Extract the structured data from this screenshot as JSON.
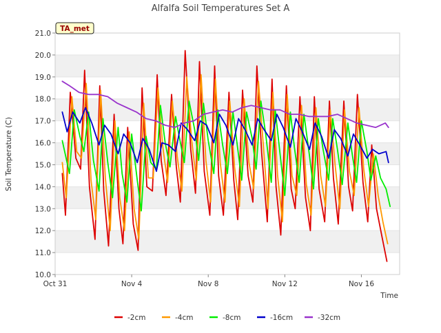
{
  "chart_data": {
    "type": "line",
    "title": "Alfalfa Soil Temperatures Set A",
    "xlabel": "Time",
    "ylabel": "Soil Temperature (C)",
    "station_label": "TA_met",
    "xlim": [
      "2023-10-31",
      "2023-11-18"
    ],
    "ylim": [
      10.0,
      21.0
    ],
    "y_ticks": [
      10.0,
      11.0,
      12.0,
      13.0,
      14.0,
      15.0,
      16.0,
      17.0,
      18.0,
      19.0,
      20.0,
      21.0
    ],
    "y_tick_labels": [
      "10.0",
      "11.0",
      "12.0",
      "13.0",
      "14.0",
      "15.0",
      "16.0",
      "17.0",
      "18.0",
      "19.0",
      "20.0",
      "21.0"
    ],
    "x_ticks": [
      "2023-10-31",
      "2023-11-04",
      "2023-11-08",
      "2023-11-12",
      "2023-11-16"
    ],
    "x_tick_labels": [
      "Oct 31",
      "Nov 4",
      "Nov 8",
      "Nov 12",
      "Nov 16"
    ],
    "grid": "horizontal bands",
    "legend_position": "bottom",
    "series": [
      {
        "name": "-2cm",
        "color": "#dd0000",
        "x": [
          "2023-10-31 09:00",
          "2023-10-31 13:00",
          "2023-10-31 19:00",
          "2023-11-01 02:00",
          "2023-11-01 08:00",
          "2023-11-01 13:00",
          "2023-11-01 19:00",
          "2023-11-02 02:00",
          "2023-11-02 08:00",
          "2023-11-02 13:00",
          "2023-11-02 19:00",
          "2023-11-03 02:00",
          "2023-11-03 08:00",
          "2023-11-03 13:00",
          "2023-11-03 19:00",
          "2023-11-04 02:00",
          "2023-11-04 08:00",
          "2023-11-04 13:00",
          "2023-11-04 19:00",
          "2023-11-05 02:00",
          "2023-11-05 08:00",
          "2023-11-05 13:00",
          "2023-11-05 19:00",
          "2023-11-06 02:00",
          "2023-11-06 08:00",
          "2023-11-06 13:00",
          "2023-11-06 19:00",
          "2023-11-07 02:00",
          "2023-11-07 08:00",
          "2023-11-07 13:00",
          "2023-11-07 19:00",
          "2023-11-08 02:00",
          "2023-11-08 08:00",
          "2023-11-08 13:00",
          "2023-11-08 19:00",
          "2023-11-09 02:00",
          "2023-11-09 08:00",
          "2023-11-09 13:00",
          "2023-11-09 19:00",
          "2023-11-10 02:00",
          "2023-11-10 08:00",
          "2023-11-10 13:00",
          "2023-11-10 19:00",
          "2023-11-11 02:00",
          "2023-11-11 08:00",
          "2023-11-11 13:00",
          "2023-11-11 19:00",
          "2023-11-12 02:00",
          "2023-11-12 08:00",
          "2023-11-12 13:00",
          "2023-11-12 19:00",
          "2023-11-13 02:00",
          "2023-11-13 08:00",
          "2023-11-13 13:00",
          "2023-11-13 19:00",
          "2023-11-14 02:00",
          "2023-11-14 08:00",
          "2023-11-14 13:00",
          "2023-11-14 19:00",
          "2023-11-15 02:00",
          "2023-11-15 08:00",
          "2023-11-15 13:00",
          "2023-11-15 19:00",
          "2023-11-16 02:00",
          "2023-11-16 08:00",
          "2023-11-16 13:00",
          "2023-11-16 19:00",
          "2023-11-17 02:00",
          "2023-11-17 08:00"
        ],
        "y": [
          14.6,
          12.7,
          18.3,
          15.3,
          14.8,
          19.3,
          14.0,
          11.6,
          18.6,
          13.8,
          11.3,
          17.3,
          13.0,
          11.4,
          16.7,
          12.3,
          11.1,
          18.5,
          14.0,
          13.8,
          19.1,
          15.2,
          13.6,
          18.2,
          14.9,
          13.3,
          20.2,
          15.7,
          13.7,
          19.7,
          14.7,
          12.7,
          19.5,
          14.5,
          12.7,
          18.3,
          14.3,
          12.5,
          18.4,
          14.5,
          13.3,
          19.5,
          15.5,
          12.4,
          18.9,
          14.0,
          11.8,
          18.6,
          13.9,
          13.0,
          18.1,
          13.5,
          12.0,
          18.1,
          13.9,
          12.4,
          17.9,
          14.4,
          12.3,
          17.9,
          14.0,
          12.9,
          18.2,
          14.2,
          12.4,
          15.9,
          13.0,
          11.7,
          10.6
        ]
      },
      {
        "name": "-4cm",
        "color": "#ff9900",
        "x": [
          "2023-10-31 09:00",
          "2023-10-31 14:00",
          "2023-10-31 21:00",
          "2023-11-01 03:00",
          "2023-11-01 09:00",
          "2023-11-01 15:00",
          "2023-11-01 21:00",
          "2023-11-02 03:00",
          "2023-11-02 09:00",
          "2023-11-02 15:00",
          "2023-11-02 21:00",
          "2023-11-03 03:00",
          "2023-11-03 09:00",
          "2023-11-03 15:00",
          "2023-11-03 21:00",
          "2023-11-04 03:00",
          "2023-11-04 09:00",
          "2023-11-04 15:00",
          "2023-11-04 21:00",
          "2023-11-05 03:00",
          "2023-11-05 09:00",
          "2023-11-05 15:00",
          "2023-11-05 21:00",
          "2023-11-06 03:00",
          "2023-11-06 09:00",
          "2023-11-06 15:00",
          "2023-11-06 21:00",
          "2023-11-07 03:00",
          "2023-11-07 09:00",
          "2023-11-07 15:00",
          "2023-11-07 21:00",
          "2023-11-08 03:00",
          "2023-11-08 09:00",
          "2023-11-08 15:00",
          "2023-11-08 21:00",
          "2023-11-09 03:00",
          "2023-11-09 09:00",
          "2023-11-09 15:00",
          "2023-11-09 21:00",
          "2023-11-10 03:00",
          "2023-11-10 09:00",
          "2023-11-10 15:00",
          "2023-11-10 21:00",
          "2023-11-11 03:00",
          "2023-11-11 09:00",
          "2023-11-11 15:00",
          "2023-11-11 21:00",
          "2023-11-12 03:00",
          "2023-11-12 09:00",
          "2023-11-12 15:00",
          "2023-11-12 21:00",
          "2023-11-13 03:00",
          "2023-11-13 09:00",
          "2023-11-13 15:00",
          "2023-11-13 21:00",
          "2023-11-14 03:00",
          "2023-11-14 09:00",
          "2023-11-14 15:00",
          "2023-11-14 21:00",
          "2023-11-15 03:00",
          "2023-11-15 09:00",
          "2023-11-15 15:00",
          "2023-11-15 21:00",
          "2023-11-16 03:00",
          "2023-11-16 09:00",
          "2023-11-16 15:00",
          "2023-11-16 21:00",
          "2023-11-17 03:00",
          "2023-11-17 09:00"
        ],
        "y": [
          15.1,
          13.5,
          18.1,
          15.6,
          15.3,
          18.7,
          14.3,
          12.5,
          18.4,
          14.4,
          12.0,
          17.0,
          13.5,
          12.0,
          16.5,
          13.0,
          11.6,
          17.8,
          14.4,
          14.4,
          18.5,
          15.8,
          14.2,
          17.9,
          15.4,
          13.8,
          19.0,
          16.2,
          14.3,
          19.1,
          15.2,
          13.3,
          18.9,
          15.1,
          13.3,
          17.9,
          14.9,
          13.1,
          18.0,
          15.1,
          13.9,
          18.8,
          15.9,
          13.0,
          18.3,
          14.5,
          12.4,
          18.2,
          14.5,
          13.6,
          17.7,
          14.1,
          12.7,
          17.6,
          14.5,
          13.1,
          17.5,
          15.0,
          13.0,
          17.5,
          14.7,
          13.6,
          17.6,
          14.8,
          13.1,
          15.5,
          13.6,
          12.4,
          11.4
        ]
      },
      {
        "name": "-8cm",
        "color": "#00ee00",
        "x": [
          "2023-10-31 09:00",
          "2023-10-31 18:00",
          "2023-11-01 00:00",
          "2023-11-01 07:00",
          "2023-11-01 12:00",
          "2023-11-01 18:00",
          "2023-11-02 00:00",
          "2023-11-02 07:00",
          "2023-11-02 12:00",
          "2023-11-02 18:00",
          "2023-11-03 00:00",
          "2023-11-03 07:00",
          "2023-11-03 12:00",
          "2023-11-03 18:00",
          "2023-11-04 00:00",
          "2023-11-04 07:00",
          "2023-11-04 12:00",
          "2023-11-04 18:00",
          "2023-11-05 00:00",
          "2023-11-05 07:00",
          "2023-11-05 12:00",
          "2023-11-05 18:00",
          "2023-11-06 00:00",
          "2023-11-06 07:00",
          "2023-11-06 12:00",
          "2023-11-06 18:00",
          "2023-11-07 00:00",
          "2023-11-07 07:00",
          "2023-11-07 12:00",
          "2023-11-07 18:00",
          "2023-11-08 00:00",
          "2023-11-08 07:00",
          "2023-11-08 12:00",
          "2023-11-08 18:00",
          "2023-11-09 00:00",
          "2023-11-09 07:00",
          "2023-11-09 12:00",
          "2023-11-09 18:00",
          "2023-11-10 00:00",
          "2023-11-10 07:00",
          "2023-11-10 12:00",
          "2023-11-10 18:00",
          "2023-11-11 00:00",
          "2023-11-11 07:00",
          "2023-11-11 12:00",
          "2023-11-11 18:00",
          "2023-11-12 00:00",
          "2023-11-12 07:00",
          "2023-11-12 12:00",
          "2023-11-12 18:00",
          "2023-11-13 00:00",
          "2023-11-13 07:00",
          "2023-11-13 12:00",
          "2023-11-13 18:00",
          "2023-11-14 00:00",
          "2023-11-14 07:00",
          "2023-11-14 12:00",
          "2023-11-14 18:00",
          "2023-11-15 00:00",
          "2023-11-15 07:00",
          "2023-11-15 12:00",
          "2023-11-15 18:00",
          "2023-11-16 00:00",
          "2023-11-16 07:00",
          "2023-11-16 12:00",
          "2023-11-16 18:00",
          "2023-11-17 00:00",
          "2023-11-17 07:00",
          "2023-11-17 12:00"
        ],
        "y": [
          16.1,
          14.6,
          17.5,
          16.3,
          15.6,
          17.4,
          15.2,
          13.8,
          17.1,
          15.1,
          13.5,
          16.7,
          14.6,
          13.3,
          16.4,
          14.3,
          12.9,
          16.3,
          15.1,
          14.8,
          17.7,
          16.0,
          14.9,
          17.2,
          16.2,
          15.1,
          17.9,
          16.6,
          15.2,
          17.8,
          16.1,
          14.6,
          17.5,
          15.9,
          14.6,
          17.4,
          16.0,
          14.3,
          17.4,
          16.2,
          14.8,
          17.9,
          16.4,
          14.2,
          17.5,
          15.5,
          13.6,
          17.4,
          15.8,
          14.2,
          17.3,
          15.4,
          13.9,
          17.1,
          15.7,
          14.3,
          17.1,
          15.7,
          14.1,
          16.9,
          15.6,
          14.2,
          17.0,
          15.6,
          14.3,
          15.4,
          14.4,
          13.9,
          13.1
        ]
      },
      {
        "name": "-16cm",
        "color": "#0000cc",
        "x": [
          "2023-10-31 09:00",
          "2023-10-31 15:00",
          "2023-10-31 22:00",
          "2023-11-01 07:00",
          "2023-11-01 14:00",
          "2023-11-01 22:00",
          "2023-11-02 07:00",
          "2023-11-02 14:00",
          "2023-11-02 22:00",
          "2023-11-03 07:00",
          "2023-11-03 14:00",
          "2023-11-03 22:00",
          "2023-11-04 07:00",
          "2023-11-04 14:00",
          "2023-11-04 22:00",
          "2023-11-05 07:00",
          "2023-11-05 14:00",
          "2023-11-05 22:00",
          "2023-11-06 07:00",
          "2023-11-06 14:00",
          "2023-11-06 22:00",
          "2023-11-07 07:00",
          "2023-11-07 14:00",
          "2023-11-07 22:00",
          "2023-11-08 07:00",
          "2023-11-08 14:00",
          "2023-11-08 22:00",
          "2023-11-09 07:00",
          "2023-11-09 14:00",
          "2023-11-09 22:00",
          "2023-11-10 07:00",
          "2023-11-10 14:00",
          "2023-11-10 22:00",
          "2023-11-11 07:00",
          "2023-11-11 14:00",
          "2023-11-11 22:00",
          "2023-11-12 07:00",
          "2023-11-12 14:00",
          "2023-11-12 22:00",
          "2023-11-13 07:00",
          "2023-11-13 14:00",
          "2023-11-13 22:00",
          "2023-11-14 07:00",
          "2023-11-14 14:00",
          "2023-11-14 22:00",
          "2023-11-15 07:00",
          "2023-11-15 14:00",
          "2023-11-15 22:00",
          "2023-11-16 07:00",
          "2023-11-16 14:00",
          "2023-11-16 22:00",
          "2023-11-17 07:00",
          "2023-11-17 10:00"
        ],
        "y": [
          17.4,
          16.5,
          17.4,
          16.9,
          17.6,
          16.9,
          15.9,
          16.8,
          16.4,
          15.5,
          16.4,
          16.0,
          15.1,
          16.2,
          15.7,
          14.7,
          16.0,
          15.9,
          15.6,
          16.9,
          16.6,
          16.1,
          17.0,
          16.8,
          16.0,
          17.3,
          16.8,
          15.9,
          17.1,
          16.6,
          15.9,
          17.1,
          16.6,
          16.1,
          17.3,
          16.7,
          15.8,
          17.1,
          16.5,
          15.7,
          16.9,
          16.3,
          15.3,
          16.6,
          16.2,
          15.4,
          16.4,
          15.9,
          15.3,
          15.7,
          15.5,
          15.6,
          15.1
        ]
      },
      {
        "name": "-32cm",
        "color": "#9933cc",
        "x": [
          "2023-10-31 09:00",
          "2023-10-31 18:00",
          "2023-11-01 06:00",
          "2023-11-01 18:00",
          "2023-11-02 06:00",
          "2023-11-02 18:00",
          "2023-11-03 06:00",
          "2023-11-03 18:00",
          "2023-11-04 06:00",
          "2023-11-04 18:00",
          "2023-11-05 06:00",
          "2023-11-05 18:00",
          "2023-11-06 06:00",
          "2023-11-06 18:00",
          "2023-11-07 06:00",
          "2023-11-07 18:00",
          "2023-11-08 06:00",
          "2023-11-08 18:00",
          "2023-11-09 06:00",
          "2023-11-09 18:00",
          "2023-11-10 06:00",
          "2023-11-10 18:00",
          "2023-11-11 06:00",
          "2023-11-11 18:00",
          "2023-11-12 06:00",
          "2023-11-12 18:00",
          "2023-11-13 06:00",
          "2023-11-13 18:00",
          "2023-11-14 06:00",
          "2023-11-14 18:00",
          "2023-11-15 06:00",
          "2023-11-15 18:00",
          "2023-11-16 06:00",
          "2023-11-16 18:00",
          "2023-11-17 06:00",
          "2023-11-17 10:00"
        ],
        "y": [
          18.8,
          18.6,
          18.3,
          18.2,
          18.2,
          18.1,
          17.8,
          17.6,
          17.4,
          17.1,
          17.0,
          16.8,
          16.7,
          16.9,
          17.0,
          17.3,
          17.4,
          17.5,
          17.4,
          17.6,
          17.7,
          17.6,
          17.5,
          17.5,
          17.3,
          17.3,
          17.2,
          17.2,
          17.2,
          17.3,
          17.1,
          16.9,
          16.8,
          16.7,
          16.9,
          16.7
        ]
      }
    ]
  }
}
